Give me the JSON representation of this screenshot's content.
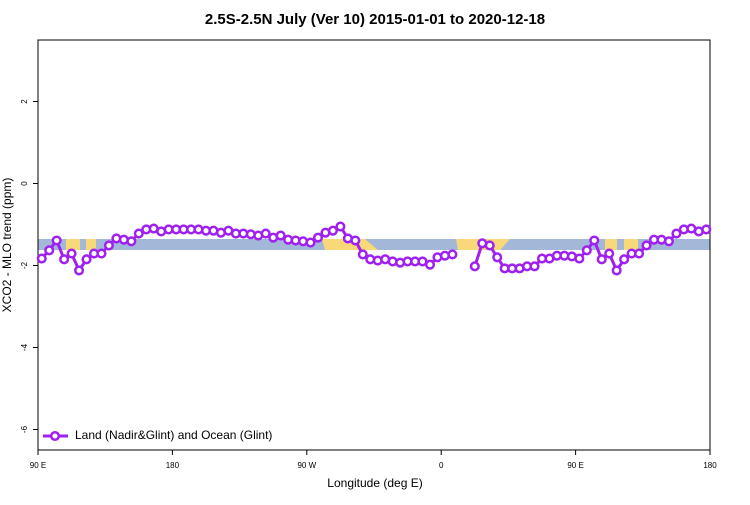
{
  "chart_data": {
    "type": "line",
    "title": "2.5S-2.5N July (Ver 10)   2015-01-01 to 2020-12-18",
    "x_label": "Longitude (deg E)",
    "y_label": "XCO2 - MLO trend (ppm)",
    "x": [
      92.5,
      97.5,
      102.5,
      107.5,
      112.5,
      117.5,
      122.5,
      127.5,
      132.5,
      137.5,
      142.5,
      147.5,
      152.5,
      157.5,
      162.5,
      167.5,
      172.5,
      177.5,
      182.5,
      187.5,
      192.5,
      197.5,
      202.5,
      207.5,
      212.5,
      217.5,
      222.5,
      227.5,
      232.5,
      237.5,
      242.5,
      247.5,
      252.5,
      257.5,
      262.5,
      267.5,
      272.5,
      277.5,
      282.5,
      287.5,
      292.5,
      297.5,
      302.5,
      307.5,
      312.5,
      317.5,
      322.5,
      327.5,
      332.5,
      337.5,
      342.5,
      347.5,
      352.5,
      357.5,
      362.5,
      367.5,
      372.5,
      377.5,
      382.5,
      387.5,
      392.5,
      397.5,
      402.5,
      407.5,
      412.5,
      417.5,
      422.5,
      427.5,
      432.5,
      437.5,
      442.5,
      447.5,
      452.5,
      457.5,
      462.5,
      467.5,
      472.5,
      477.5,
      482.5,
      487.5,
      492.5,
      497.5,
      502.5,
      507.5,
      512.5,
      517.5,
      522.5,
      527.5,
      532.5,
      537.5
    ],
    "series": [
      {
        "name": "Land (Nadir&Glint) and Ocean (Glint)",
        "color": "#a020f0",
        "values": [
          -1.83,
          -1.63,
          -1.39,
          -1.85,
          -1.71,
          -2.12,
          -1.85,
          -1.71,
          -1.71,
          -1.51,
          -1.34,
          -1.37,
          -1.41,
          -1.22,
          -1.12,
          -1.1,
          -1.17,
          -1.12,
          -1.12,
          -1.12,
          -1.12,
          -1.12,
          -1.15,
          -1.15,
          -1.2,
          -1.15,
          -1.22,
          -1.22,
          -1.24,
          -1.27,
          -1.22,
          -1.32,
          -1.27,
          -1.37,
          -1.39,
          -1.41,
          -1.44,
          -1.32,
          -1.2,
          -1.15,
          -1.05,
          -1.34,
          -1.39,
          -1.73,
          -1.85,
          -1.88,
          -1.85,
          -1.9,
          -1.93,
          -1.9,
          -1.9,
          -1.9,
          -1.98,
          -1.8,
          -1.76,
          -1.73,
          null,
          null,
          -2.02,
          -1.46,
          -1.51,
          -1.8,
          -2.07,
          -2.07,
          -2.07,
          -2.02,
          -2.02,
          -1.83,
          -1.83,
          -1.76,
          -1.76,
          -1.78,
          -1.83,
          -1.63,
          -1.39,
          -1.85,
          -1.71,
          -2.12,
          -1.85,
          -1.71,
          -1.71,
          -1.51,
          -1.37,
          -1.37,
          -1.41,
          -1.22,
          -1.12,
          -1.1,
          -1.17,
          -1.12
        ]
      }
    ],
    "xlim": [
      90,
      540
    ],
    "xticks": [
      {
        "value": 90,
        "label": "90 E"
      },
      180,
      {
        "value": 270,
        "label": "90 W"
      },
      {
        "value": 360,
        "label": "0"
      },
      {
        "value": 450,
        "label": "90 E"
      },
      {
        "value": 540,
        "label": "180"
      }
    ],
    "ylim": [
      -6.5,
      3.5
    ],
    "yticks": [
      2,
      0,
      -2,
      -4,
      -6
    ],
    "legend": "bottom-left"
  }
}
